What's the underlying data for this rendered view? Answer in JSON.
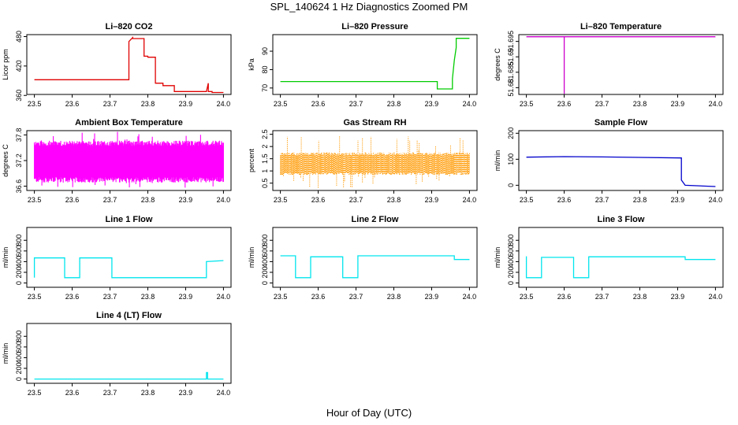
{
  "title": "SPL_140624  1 Hz Diagnostics Zoomed PM",
  "xlabel": "Hour of Day (UTC)",
  "chart_data": [
    {
      "type": "line",
      "title": "Li–820 CO2",
      "ylabel": "Licor ppm",
      "color": "#e00000",
      "xlim": [
        23.5,
        24.0
      ],
      "xticks": [
        23.5,
        23.6,
        23.7,
        23.8,
        23.9,
        24.0
      ],
      "ylim": [
        362,
        484
      ],
      "yticks": [
        360,
        420,
        480
      ],
      "series": [
        {
          "x": [
            23.5,
            23.75,
            23.75,
            23.76,
            23.76,
            23.79,
            23.79,
            23.8,
            23.8,
            23.82,
            23.82,
            23.84,
            23.84,
            23.87,
            23.87,
            23.955,
            23.96,
            23.96,
            23.97,
            23.97,
            24.0
          ],
          "y": [
            392,
            392,
            470,
            478,
            476,
            476,
            440,
            440,
            438,
            438,
            385,
            385,
            380,
            380,
            368,
            368,
            385,
            368,
            368,
            366,
            366
          ]
        }
      ]
    },
    {
      "type": "line",
      "title": "Li–820 Pressure",
      "ylabel": "kPa",
      "color": "#00cc00",
      "xlim": [
        23.5,
        24.0
      ],
      "xticks": [
        23.5,
        23.6,
        23.7,
        23.8,
        23.9,
        24.0
      ],
      "ylim": [
        66.5,
        99
      ],
      "yticks": [
        70,
        80,
        90
      ],
      "series": [
        {
          "x": [
            23.5,
            23.915,
            23.915,
            23.955,
            23.955,
            23.96,
            23.965,
            23.965,
            23.99,
            24.0
          ],
          "y": [
            73.5,
            73.5,
            69.5,
            69.5,
            75,
            85,
            92,
            97,
            97,
            97
          ]
        }
      ]
    },
    {
      "type": "line",
      "title": "Li–820 Temperature",
      "ylabel": "degrees C",
      "color": "#cc00cc",
      "xlim": [
        23.5,
        24.0
      ],
      "xticks": [
        23.5,
        23.6,
        23.7,
        23.8,
        23.9,
        24.0
      ],
      "ylim": [
        51.6778,
        51.6972
      ],
      "yticks": [
        51.68,
        51.685,
        51.69,
        51.695
      ],
      "series": [
        {
          "x": [
            23.5,
            23.6,
            23.6,
            23.6,
            24.0
          ],
          "y": [
            51.6965,
            51.6965,
            51.678,
            51.6965,
            51.6965
          ]
        }
      ]
    },
    {
      "type": "line",
      "title": "Ambient Box Temperature",
      "ylabel": "degrees C",
      "color": "#ff00ff",
      "xlim": [
        23.5,
        24.0
      ],
      "xticks": [
        23.5,
        23.6,
        23.7,
        23.8,
        23.9,
        24.0
      ],
      "ylim": [
        36.5,
        37.9
      ],
      "yticks": [
        36.6,
        37.2,
        37.8
      ],
      "band": {
        "x": [
          23.5,
          24.0
        ],
        "low": 36.75,
        "high": 37.6,
        "extremes_low": 36.56,
        "extremes_high": 37.88
      }
    },
    {
      "type": "scatter",
      "title": "Gas Stream RH",
      "ylabel": "percent",
      "color": "#ff9900",
      "xlim": [
        23.5,
        24.0
      ],
      "xticks": [
        23.5,
        23.6,
        23.7,
        23.8,
        23.9,
        24.0
      ],
      "ylim": [
        0.2,
        2.65
      ],
      "yticks": [
        0.5,
        1.0,
        1.5,
        2.0,
        2.5
      ],
      "band": {
        "x": [
          23.5,
          24.0
        ],
        "low": 0.9,
        "high": 1.7,
        "extremes_low": 0.3,
        "extremes_high": 2.45
      }
    },
    {
      "type": "line",
      "title": "Sample Flow",
      "ylabel": "ml/min",
      "color": "#0000cc",
      "xlim": [
        23.5,
        24.0
      ],
      "xticks": [
        23.5,
        23.6,
        23.7,
        23.8,
        23.9,
        24.0
      ],
      "ylim": [
        -20,
        210
      ],
      "yticks": [
        0,
        100,
        200
      ],
      "series": [
        {
          "x": [
            23.5,
            23.6,
            23.7,
            23.8,
            23.91,
            23.91,
            23.92,
            24.0
          ],
          "y": [
            108,
            110,
            109,
            107,
            105,
            20,
            0,
            -5
          ]
        }
      ]
    },
    {
      "type": "line",
      "title": "Line 1 Flow",
      "ylabel": "ml/min",
      "color": "#00e5ee",
      "xlim": [
        23.5,
        24.0
      ],
      "xticks": [
        23.5,
        23.6,
        23.7,
        23.8,
        23.9,
        24.0
      ],
      "ylim": [
        -80,
        1040
      ],
      "yticks": [
        0,
        200,
        400,
        600,
        800
      ],
      "series": [
        {
          "x": [
            23.5,
            23.5,
            23.58,
            23.58,
            23.62,
            23.62,
            23.705,
            23.705,
            23.955,
            23.955,
            24.0
          ],
          "y": [
            100,
            470,
            470,
            100,
            100,
            470,
            470,
            100,
            100,
            400,
            420
          ]
        }
      ]
    },
    {
      "type": "line",
      "title": "Line 2 Flow",
      "ylabel": "ml/min",
      "color": "#00e5ee",
      "xlim": [
        23.5,
        24.0
      ],
      "xticks": [
        23.5,
        23.6,
        23.7,
        23.8,
        23.9,
        24.0
      ],
      "ylim": [
        -80,
        1040
      ],
      "yticks": [
        0,
        200,
        400,
        600,
        800
      ],
      "series": [
        {
          "x": [
            23.5,
            23.54,
            23.54,
            23.58,
            23.58,
            23.665,
            23.665,
            23.705,
            23.705,
            23.96,
            23.96,
            24.0
          ],
          "y": [
            510,
            510,
            100,
            100,
            490,
            490,
            100,
            100,
            510,
            510,
            440,
            440
          ]
        }
      ]
    },
    {
      "type": "line",
      "title": "Line 3 Flow",
      "ylabel": "ml/min",
      "color": "#00e5ee",
      "xlim": [
        23.5,
        24.0
      ],
      "xticks": [
        23.5,
        23.6,
        23.7,
        23.8,
        23.9,
        24.0
      ],
      "ylim": [
        -80,
        1040
      ],
      "yticks": [
        0,
        200,
        400,
        600,
        800
      ],
      "series": [
        {
          "x": [
            23.5,
            23.5,
            23.505,
            23.505,
            23.54,
            23.54,
            23.625,
            23.625,
            23.665,
            23.665,
            23.92,
            23.92,
            24.0
          ],
          "y": [
            500,
            100,
            100,
            100,
            100,
            480,
            480,
            100,
            100,
            490,
            490,
            440,
            440
          ]
        }
      ]
    },
    {
      "type": "line",
      "title": "Line 4 (LT) Flow",
      "ylabel": "ml/min",
      "color": "#00e5ee",
      "xlim": [
        23.5,
        24.0
      ],
      "xticks": [
        23.5,
        23.6,
        23.7,
        23.8,
        23.9,
        24.0
      ],
      "ylim": [
        -80,
        1040
      ],
      "yticks": [
        0,
        200,
        400,
        600,
        800
      ],
      "series": [
        {
          "x": [
            23.5,
            23.955,
            23.955,
            23.958,
            23.958,
            24.0
          ],
          "y": [
            0,
            0,
            120,
            120,
            0,
            0
          ]
        }
      ]
    }
  ]
}
